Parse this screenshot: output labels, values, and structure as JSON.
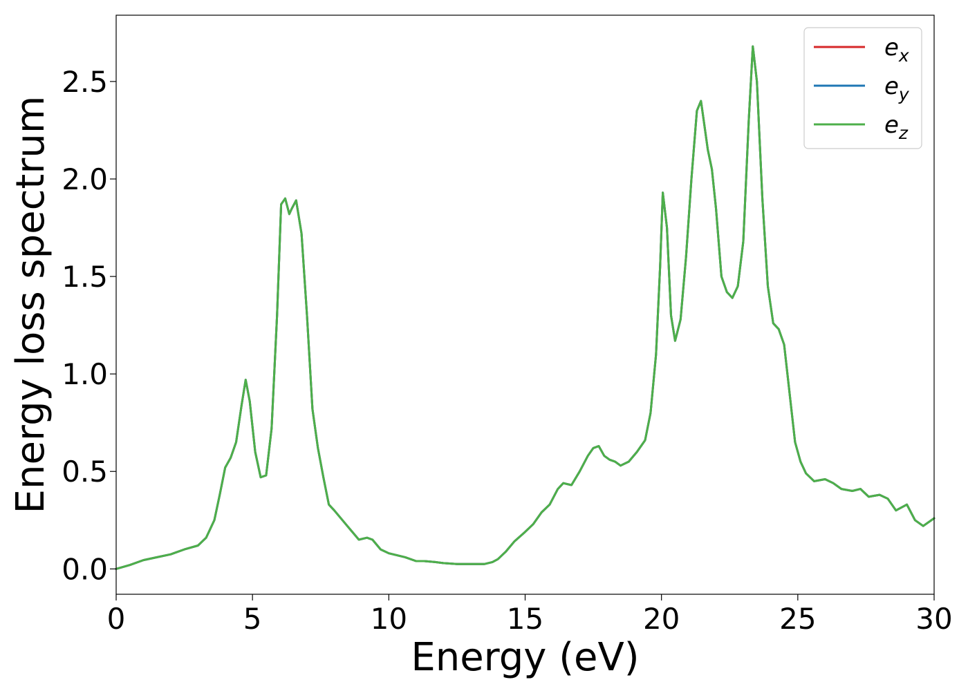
{
  "chart_data": {
    "type": "line",
    "xlabel": "Energy (eV)",
    "ylabel": "Energy loss spectrum",
    "xlim": [
      0,
      30
    ],
    "ylim": [
      -0.13,
      2.84
    ],
    "xticks": [
      0,
      5,
      10,
      15,
      20,
      25,
      30
    ],
    "xtick_labels": [
      "0",
      "5",
      "10",
      "15",
      "20",
      "25",
      "30"
    ],
    "yticks": [
      0.0,
      0.5,
      1.0,
      1.5,
      2.0,
      2.5
    ],
    "ytick_labels": [
      "0.0",
      "0.5",
      "1.0",
      "1.5",
      "2.0",
      "2.5"
    ],
    "grid": false,
    "legend_position": "top-right",
    "series": [
      {
        "name": "e_x",
        "color": "#d62728"
      },
      {
        "name": "e_y",
        "color": "#1f77b4"
      },
      {
        "name": "e_z",
        "color": "#4daf4a"
      }
    ],
    "x": [
      0,
      0.5,
      1.0,
      1.5,
      2.0,
      2.5,
      3.0,
      3.3,
      3.6,
      3.8,
      4.0,
      4.2,
      4.4,
      4.6,
      4.75,
      4.9,
      5.1,
      5.3,
      5.5,
      5.7,
      5.9,
      6.05,
      6.2,
      6.35,
      6.45,
      6.6,
      6.8,
      7.0,
      7.2,
      7.4,
      7.6,
      7.8,
      8.0,
      8.3,
      8.6,
      8.9,
      9.2,
      9.4,
      9.7,
      10.0,
      10.3,
      10.6,
      11.0,
      11.3,
      11.7,
      12.0,
      12.5,
      13.0,
      13.5,
      13.8,
      14.0,
      14.3,
      14.6,
      15.0,
      15.3,
      15.6,
      15.9,
      16.2,
      16.4,
      16.7,
      17.0,
      17.3,
      17.5,
      17.7,
      17.9,
      18.1,
      18.3,
      18.5,
      18.8,
      19.1,
      19.4,
      19.6,
      19.8,
      19.95,
      20.05,
      20.2,
      20.35,
      20.5,
      20.7,
      20.9,
      21.1,
      21.3,
      21.45,
      21.55,
      21.7,
      21.85,
      22.0,
      22.2,
      22.4,
      22.6,
      22.8,
      23.0,
      23.2,
      23.35,
      23.5,
      23.7,
      23.9,
      24.1,
      24.3,
      24.5,
      24.7,
      24.9,
      25.1,
      25.3,
      25.6,
      26.0,
      26.3,
      26.6,
      27.0,
      27.3,
      27.6,
      28.0,
      28.3,
      28.6,
      29.0,
      29.3,
      29.6,
      30.0
    ],
    "y": [
      0.0,
      0.02,
      0.045,
      0.06,
      0.075,
      0.1,
      0.12,
      0.16,
      0.25,
      0.38,
      0.52,
      0.57,
      0.65,
      0.84,
      0.97,
      0.86,
      0.6,
      0.47,
      0.48,
      0.72,
      1.3,
      1.87,
      1.9,
      1.82,
      1.85,
      1.89,
      1.72,
      1.3,
      0.82,
      0.62,
      0.47,
      0.33,
      0.3,
      0.25,
      0.2,
      0.15,
      0.16,
      0.15,
      0.1,
      0.08,
      0.07,
      0.06,
      0.04,
      0.04,
      0.035,
      0.03,
      0.025,
      0.025,
      0.025,
      0.035,
      0.05,
      0.09,
      0.14,
      0.19,
      0.23,
      0.29,
      0.33,
      0.41,
      0.44,
      0.43,
      0.5,
      0.58,
      0.62,
      0.63,
      0.58,
      0.56,
      0.55,
      0.53,
      0.55,
      0.6,
      0.66,
      0.8,
      1.1,
      1.55,
      1.93,
      1.75,
      1.3,
      1.17,
      1.28,
      1.6,
      2.0,
      2.35,
      2.4,
      2.3,
      2.15,
      2.05,
      1.85,
      1.5,
      1.42,
      1.39,
      1.45,
      1.68,
      2.3,
      2.68,
      2.5,
      1.9,
      1.45,
      1.26,
      1.23,
      1.15,
      0.9,
      0.65,
      0.55,
      0.49,
      0.45,
      0.46,
      0.44,
      0.41,
      0.4,
      0.41,
      0.37,
      0.38,
      0.36,
      0.3,
      0.33,
      0.25,
      0.22,
      0.26
    ]
  }
}
